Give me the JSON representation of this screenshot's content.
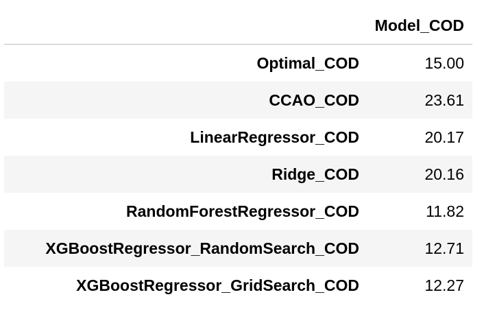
{
  "table": {
    "columns": [
      "Model_COD"
    ],
    "rows": [
      {
        "index": "Optimal_COD",
        "value": "15.00"
      },
      {
        "index": "CCAO_COD",
        "value": "23.61"
      },
      {
        "index": "LinearRegressor_COD",
        "value": "20.17"
      },
      {
        "index": "Ridge_COD",
        "value": "20.16"
      },
      {
        "index": "RandomForestRegressor_COD",
        "value": "11.82"
      },
      {
        "index": "XGBoostRegressor_RandomSearch_COD",
        "value": "12.71"
      },
      {
        "index": "XGBoostRegressor_GridSearch_COD",
        "value": "12.27"
      }
    ]
  },
  "colors": {
    "stripe": "#f5f5f5",
    "header_rule": "#bdbdbd",
    "text": "#000000"
  }
}
